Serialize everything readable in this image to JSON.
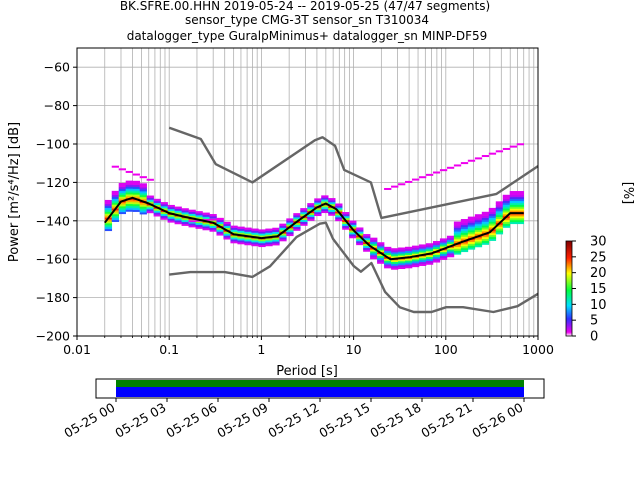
{
  "title_lines": [
    "BK.SFRE.00.HHN   2019-05-24 -- 2019-05-25  (47/47 segments)",
    "sensor_type CMG-3T sensor_sn T310034",
    "datalogger_type GuralpMinimus+ datalogger_sn MINP-DF59"
  ],
  "chart_data": {
    "type": "heatmap",
    "xlabel": "Period [s]",
    "ylabel": "Power [m²/s⁴/Hz] [dB]",
    "xscale": "log",
    "xlim": [
      0.01,
      1000
    ],
    "ylim": [
      -200,
      -50
    ],
    "x_tick_labels": [
      "0.01",
      "0.1",
      "1",
      "10",
      "100",
      "1000"
    ],
    "y_ticks": [
      -60,
      -80,
      -100,
      -120,
      -140,
      -160,
      -180,
      -200
    ],
    "grid": true,
    "colorbar": {
      "label": "[%]",
      "ticks": [
        0,
        5,
        10,
        15,
        20,
        25,
        30
      ],
      "range": [
        0,
        30
      ]
    },
    "series": [
      {
        "name": "",
        "style": "noise-model-high",
        "x": [
          0.1,
          0.22,
          0.32,
          0.8,
          3.8,
          4.6,
          6.3,
          7.9,
          15.4,
          20,
          354.8,
          1000
        ],
        "y": [
          -91.5,
          -97.4,
          -110.5,
          -120,
          -98,
          -96.5,
          -101,
          -113.5,
          -120,
          -138.5,
          -126,
          -111.5
        ]
      },
      {
        "name": "",
        "style": "noise-model-low",
        "x": [
          0.1,
          0.17,
          0.4,
          0.8,
          1.24,
          2.4,
          4.3,
          5.0,
          6.0,
          10.0,
          12.0,
          15.6,
          21.9,
          31.6,
          45,
          70,
          101,
          154,
          328,
          600,
          1000
        ],
        "y": [
          -168,
          -166.7,
          -166.7,
          -169.2,
          -163.7,
          -148.5,
          -141.5,
          -141,
          -149.5,
          -163.5,
          -166.5,
          -162,
          -177,
          -185,
          -187.5,
          -187.5,
          -185,
          -185,
          -187.5,
          -184.5,
          -178
        ]
      },
      {
        "name": "",
        "style": "mode",
        "x": [
          0.02,
          0.03,
          0.04,
          0.06,
          0.1,
          0.15,
          0.3,
          0.5,
          1.0,
          1.5,
          2.5,
          4.0,
          5.0,
          6.5,
          10,
          15,
          25,
          40,
          70,
          150,
          300,
          500,
          700
        ],
        "y": [
          -141,
          -130,
          -128,
          -131,
          -136,
          -138,
          -141,
          -147,
          -149,
          -148,
          -140,
          -133,
          -131,
          -134,
          -145,
          -153,
          -160,
          -159,
          -157,
          -151,
          -146,
          -136,
          -136
        ]
      }
    ],
    "date_axis": {
      "tick_labels": [
        "05-25 00",
        "05-25 03",
        "05-25 06",
        "05-25 09",
        "05-25 12",
        "05-25 15",
        "05-25 18",
        "05-25 21",
        "05-26 00"
      ],
      "coverage_colors": [
        "#008000",
        "#0000ff"
      ]
    }
  }
}
